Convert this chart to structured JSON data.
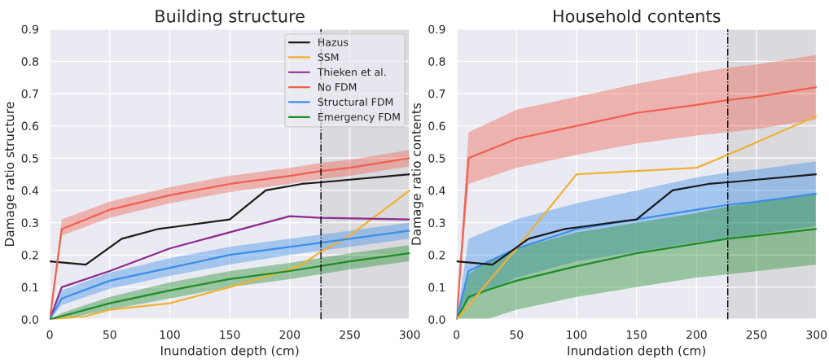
{
  "chart_data": [
    {
      "type": "line",
      "title": "Building structure",
      "xlabel": "Inundation depth (cm)",
      "ylabel": "Damage ratio structure",
      "xlim": [
        0,
        300
      ],
      "xticks": [
        0,
        50,
        100,
        150,
        200,
        250,
        300
      ],
      "ylim": [
        0,
        0.9
      ],
      "yticks": [
        {
          "value": 0,
          "label": "0.0"
        },
        0.1,
        0.2,
        0.3,
        0.4,
        0.5,
        0.6,
        0.7,
        0.8,
        0.9
      ],
      "grid": true,
      "legend": "top right",
      "ref_lines": [
        {
          "axis": "x",
          "value": 226,
          "color": "#000000",
          "line_style": "dashed"
        }
      ],
      "bands": [
        {
          "axis": "x",
          "from": 226,
          "to": 300,
          "color": "#d5d5d8"
        }
      ],
      "series": [
        {
          "name": "Hazus",
          "color": "#1a1a1a",
          "x": [
            0,
            30,
            60,
            90,
            100,
            150,
            180,
            210,
            226,
            300
          ],
          "values": [
            0.18,
            0.17,
            0.25,
            0.28,
            0.285,
            0.31,
            0.4,
            0.42,
            0.425,
            0.45
          ]
        },
        {
          "name": "SSM",
          "color": "#f0b132",
          "x": [
            0,
            30,
            50,
            100,
            150,
            200,
            210,
            226,
            250,
            275,
            300
          ],
          "values": [
            0,
            0.01,
            0.03,
            0.05,
            0.1,
            0.155,
            0.17,
            0.21,
            0.26,
            0.33,
            0.4
          ]
        },
        {
          "name": "Thieken et al.",
          "color": "#8e2a8e",
          "x": [
            0,
            10,
            50,
            100,
            150,
            200,
            226,
            300
          ],
          "values": [
            0,
            0.1,
            0.15,
            0.22,
            0.27,
            0.32,
            0.315,
            0.31
          ]
        },
        {
          "name": "No FDM",
          "color": "#f0604c",
          "x": [
            0,
            10,
            50,
            100,
            150,
            200,
            226,
            250,
            300
          ],
          "values": [
            0,
            0.28,
            0.34,
            0.385,
            0.42,
            0.445,
            0.46,
            0.47,
            0.5
          ],
          "lower": [
            0,
            0.26,
            0.315,
            0.36,
            0.395,
            0.42,
            0.435,
            0.445,
            0.475
          ],
          "upper": [
            0,
            0.31,
            0.365,
            0.41,
            0.445,
            0.47,
            0.485,
            0.495,
            0.525
          ]
        },
        {
          "name": "Structural FDM",
          "color": "#3c8ee8",
          "x": [
            0,
            10,
            50,
            100,
            150,
            200,
            250,
            300
          ],
          "values": [
            0,
            0.065,
            0.12,
            0.16,
            0.2,
            0.225,
            0.25,
            0.275
          ],
          "lower": [
            0,
            0.045,
            0.095,
            0.135,
            0.17,
            0.2,
            0.225,
            0.25
          ],
          "upper": [
            0,
            0.09,
            0.145,
            0.19,
            0.225,
            0.25,
            0.275,
            0.3
          ]
        },
        {
          "name": "Emergency FDM",
          "color": "#1e8c28",
          "x": [
            0,
            10,
            50,
            100,
            150,
            200,
            250,
            300
          ],
          "values": [
            0,
            0.01,
            0.05,
            0.09,
            0.125,
            0.15,
            0.18,
            0.205
          ],
          "lower": [
            0,
            0.0,
            0.03,
            0.065,
            0.1,
            0.125,
            0.155,
            0.18
          ],
          "upper": [
            0,
            0.02,
            0.07,
            0.115,
            0.15,
            0.175,
            0.205,
            0.23
          ]
        }
      ]
    },
    {
      "type": "line",
      "title": "Household contents",
      "xlabel": "Inundation depth (cm)",
      "ylabel": "Damage ratio contents",
      "xlim": [
        0,
        300
      ],
      "xticks": [
        0,
        50,
        100,
        150,
        200,
        250,
        300
      ],
      "ylim": [
        0,
        0.9
      ],
      "yticks": [
        {
          "value": 0,
          "label": "0.0"
        },
        0.1,
        0.2,
        0.3,
        0.4,
        0.5,
        0.6,
        0.7,
        0.8,
        0.9
      ],
      "grid": true,
      "ref_lines": [
        {
          "axis": "x",
          "value": 226,
          "color": "#000000",
          "line_style": "dashed"
        }
      ],
      "bands": [
        {
          "axis": "x",
          "from": 226,
          "to": 300,
          "color": "#d5d5d8"
        }
      ],
      "series": [
        {
          "color": "#f0604c",
          "x": [
            0,
            10,
            50,
            100,
            150,
            200,
            226,
            250,
            300
          ],
          "values": [
            0,
            0.5,
            0.56,
            0.6,
            0.64,
            0.665,
            0.68,
            0.69,
            0.72
          ],
          "lower": [
            0,
            0.42,
            0.47,
            0.51,
            0.545,
            0.57,
            0.58,
            0.59,
            0.62
          ],
          "upper": [
            0,
            0.58,
            0.65,
            0.69,
            0.73,
            0.765,
            0.78,
            0.79,
            0.82
          ]
        },
        {
          "color": "#3c8ee8",
          "x": [
            0,
            10,
            50,
            100,
            150,
            200,
            226,
            250,
            300
          ],
          "values": [
            0,
            0.15,
            0.22,
            0.28,
            0.31,
            0.34,
            0.355,
            0.365,
            0.39
          ],
          "lower": [
            0,
            0.06,
            0.13,
            0.18,
            0.21,
            0.24,
            0.25,
            0.265,
            0.29
          ],
          "upper": [
            0,
            0.25,
            0.31,
            0.36,
            0.4,
            0.44,
            0.455,
            0.465,
            0.49
          ]
        },
        {
          "color": "#1e8c28",
          "x": [
            0,
            10,
            25,
            50,
            100,
            150,
            200,
            226,
            300
          ],
          "values": [
            0,
            0.07,
            0.09,
            0.12,
            0.165,
            0.205,
            0.235,
            0.25,
            0.28
          ],
          "lower": [
            0,
            0.0,
            0.0,
            0.03,
            0.07,
            0.1,
            0.13,
            0.14,
            0.17
          ],
          "upper": [
            0,
            0.14,
            0.18,
            0.22,
            0.27,
            0.3,
            0.33,
            0.35,
            0.39
          ]
        },
        {
          "color": "#f0b132",
          "x": [
            0,
            50,
            100,
            150,
            200,
            226,
            300
          ],
          "values": [
            0,
            0.22,
            0.45,
            0.46,
            0.47,
            0.51,
            0.63
          ]
        },
        {
          "color": "#1a1a1a",
          "x": [
            0,
            30,
            60,
            90,
            100,
            150,
            180,
            210,
            226,
            300
          ],
          "values": [
            0.18,
            0.17,
            0.25,
            0.28,
            0.285,
            0.31,
            0.4,
            0.42,
            0.425,
            0.45
          ]
        }
      ]
    }
  ]
}
